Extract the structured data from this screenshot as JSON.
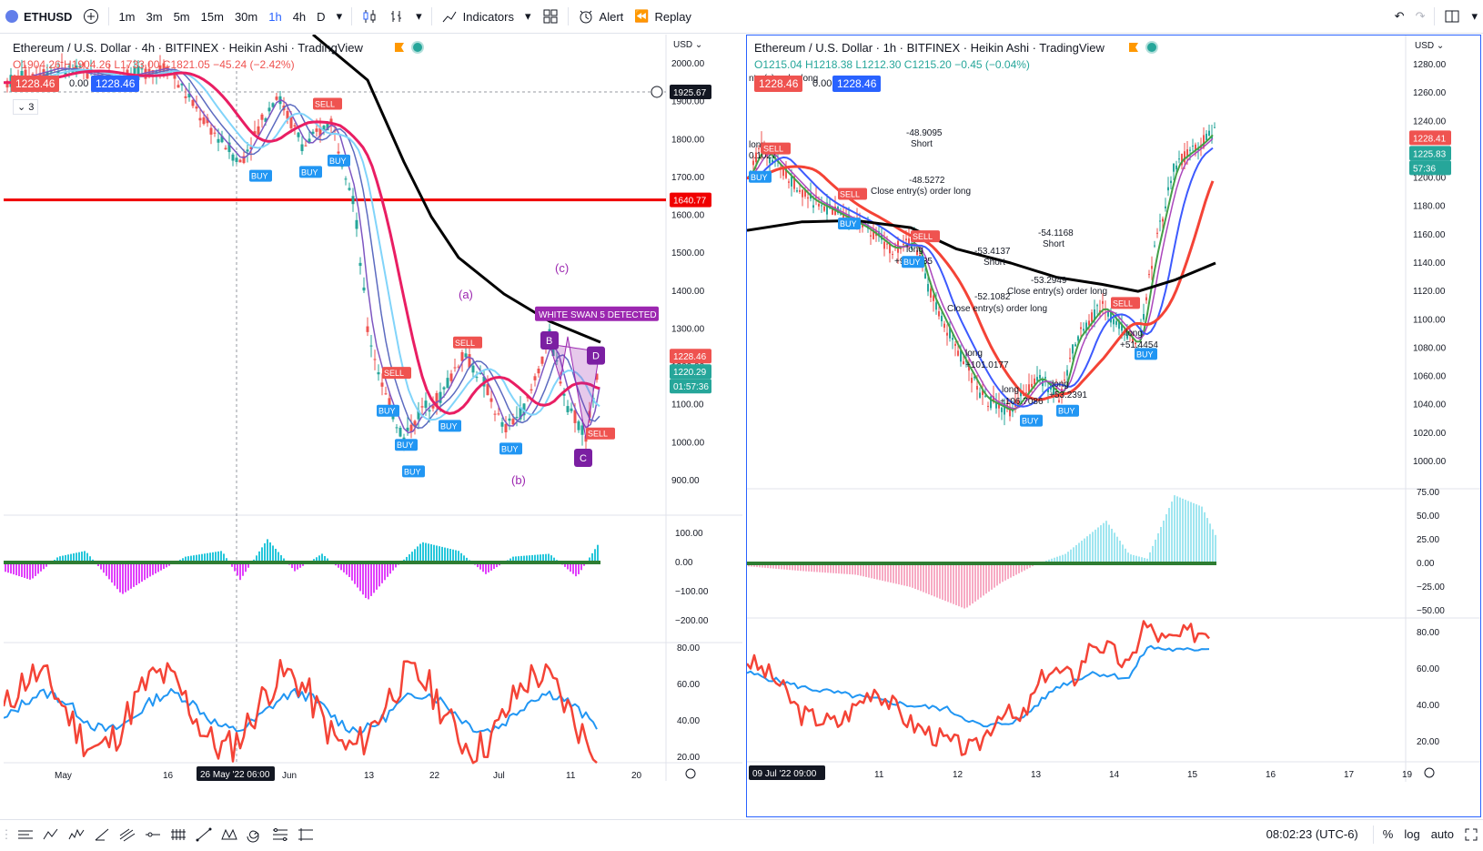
{
  "toolbar": {
    "symbol": "ETHUSD",
    "timeframes": [
      "1m",
      "3m",
      "5m",
      "15m",
      "30m",
      "1h",
      "4h",
      "D"
    ],
    "active_timeframe": "1h",
    "indicators_label": "Indicators",
    "alert_label": "Alert",
    "replay_label": "Replay"
  },
  "left_chart": {
    "title": "Ethereum / U.S. Dollar · 4h · BITFINEX · Heikin Ashi · TradingView",
    "ohlc": "O1904.26 H1904.26 L1733.00 C1821.05 −45.24 (−2.42%)",
    "bid": "1228.46",
    "spread": "0.00",
    "ask": "1228.46",
    "collapse_count": "3",
    "currency": "USD",
    "price_ticks": [
      "2000.00",
      "1900.00",
      "1800.00",
      "1700.00",
      "1600.00",
      "1500.00",
      "1400.00",
      "1300.00",
      "1200.00",
      "1100.00",
      "1000.00",
      "900.00"
    ],
    "crosshair_price": "1925.67",
    "red_line_price": "1640.77",
    "last_price": "1228.46",
    "price_b": "1220.29",
    "countdown": "01:57:36",
    "macd_ticks": [
      "100.00",
      "0.00",
      "−100.00",
      "−200.00"
    ],
    "rsi_ticks": [
      "80.00",
      "60.00",
      "40.00",
      "20.00"
    ],
    "time_ticks": [
      "May",
      "16",
      "Jun",
      "13",
      "22",
      "Jul",
      "11",
      "20"
    ],
    "crosshair_time": "26 May '22  06:00",
    "wave_labels": [
      "(a)",
      "(b)",
      "(c)"
    ],
    "pattern_label": "WHITE SWAN 5 DETECTED",
    "pattern_points": [
      "B",
      "D",
      "C"
    ],
    "signals": [
      "BUY",
      "BUY",
      "BUY",
      "BUY",
      "BUY",
      "BUY",
      "BUY",
      "BUY",
      "SELL",
      "SELL",
      "SELL",
      "SELL"
    ]
  },
  "right_chart": {
    "title": "Ethereum / U.S. Dollar · 1h · BITFINEX · Heikin Ashi · TradingView",
    "ohlc": "O1215.04 H1218.38 L1212.30 C1215.20 −0.45 (−0.04%)",
    "bid": "1228.46",
    "spread": "0.00",
    "ask": "1228.46",
    "currency": "USD",
    "price_ticks": [
      "1280.00",
      "1260.00",
      "1240.00",
      "1220.00",
      "1200.00",
      "1180.00",
      "1160.00",
      "1140.00",
      "1120.00",
      "1100.00",
      "1080.00",
      "1060.00",
      "1040.00",
      "1020.00",
      "1000.00"
    ],
    "last_price": "1228.41",
    "price_b": "1225.83",
    "countdown": "57:36",
    "macd_ticks": [
      "75.00",
      "50.00",
      "25.00",
      "0.00",
      "−25.00",
      "−50.00"
    ],
    "rsi_ticks": [
      "80.00",
      "60.00",
      "40.00",
      "20.00"
    ],
    "time_ticks": [
      "11",
      "12",
      "13",
      "14",
      "15",
      "16",
      "17",
      "19"
    ],
    "crosshair_time": "09 Jul '22  09:00",
    "trade_notes": [
      {
        "text": "-48.9095"
      },
      {
        "text": "Short"
      },
      {
        "text": "-48.5272"
      },
      {
        "text": "Close entry(s) order long"
      },
      {
        "text": "long"
      },
      {
        "text": "+93.9635"
      },
      {
        "text": "-53.4137"
      },
      {
        "text": "Short"
      },
      {
        "text": "-54.1168"
      },
      {
        "text": "Short"
      },
      {
        "text": "-53.2949"
      },
      {
        "text": "Close entry(s) order long"
      },
      {
        "text": "-52.1082"
      },
      {
        "text": "Close entry(s) order long"
      },
      {
        "text": "long"
      },
      {
        "text": "+101.0177"
      },
      {
        "text": "long"
      },
      {
        "text": "+106.7086"
      },
      {
        "text": "long"
      },
      {
        "text": "+53.2391"
      },
      {
        "text": "long"
      },
      {
        "text": "+51.4454"
      },
      {
        "text": "long"
      },
      {
        "text": "0.1027"
      },
      {
        "text": "ntry(s) order long"
      }
    ],
    "signals": [
      "SELL",
      "SELL",
      "SELL",
      "SELL",
      "BUY",
      "BUY",
      "BUY",
      "BUY",
      "BUY",
      "BUY"
    ]
  },
  "status": {
    "time": "08:02:23 (UTC-6)",
    "percent": "%",
    "log": "log",
    "auto": "auto"
  }
}
